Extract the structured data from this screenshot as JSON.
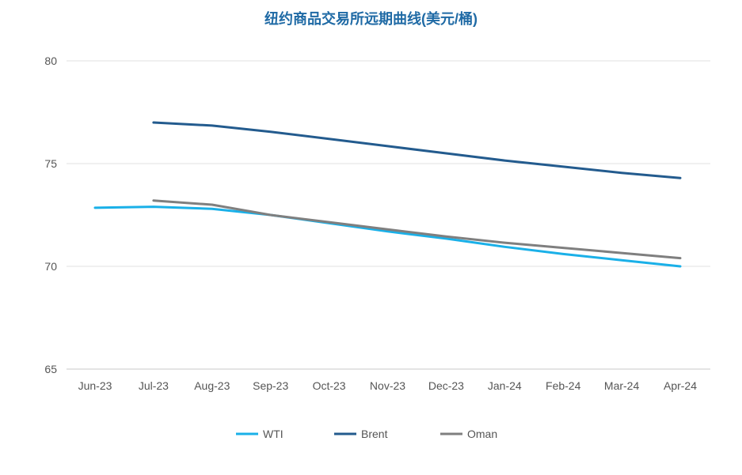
{
  "chart_data": {
    "type": "line",
    "title": "纽约商品交易所远期曲线(美元/桶)",
    "categories": [
      "Jun-23",
      "Jul-23",
      "Aug-23",
      "Sep-23",
      "Oct-23",
      "Nov-23",
      "Dec-23",
      "Jan-24",
      "Feb-24",
      "Mar-24",
      "Apr-24"
    ],
    "ylim": [
      65,
      80
    ],
    "yticks": [
      65,
      70,
      75,
      80
    ],
    "grid": true,
    "legend_position": "bottom",
    "series": [
      {
        "name": "WTI",
        "color": "#1ab0e8",
        "values": [
          72.85,
          72.9,
          72.8,
          72.5,
          72.1,
          71.7,
          71.35,
          70.95,
          70.6,
          70.3,
          70.0
        ]
      },
      {
        "name": "Brent",
        "color": "#235b8e",
        "values": [
          null,
          77.0,
          76.85,
          76.55,
          76.2,
          75.85,
          75.5,
          75.15,
          74.85,
          74.55,
          74.3
        ]
      },
      {
        "name": "Oman",
        "color": "#7f7f7f",
        "values": [
          null,
          73.2,
          73.0,
          72.5,
          72.15,
          71.8,
          71.45,
          71.15,
          70.9,
          70.65,
          70.4
        ]
      }
    ]
  }
}
